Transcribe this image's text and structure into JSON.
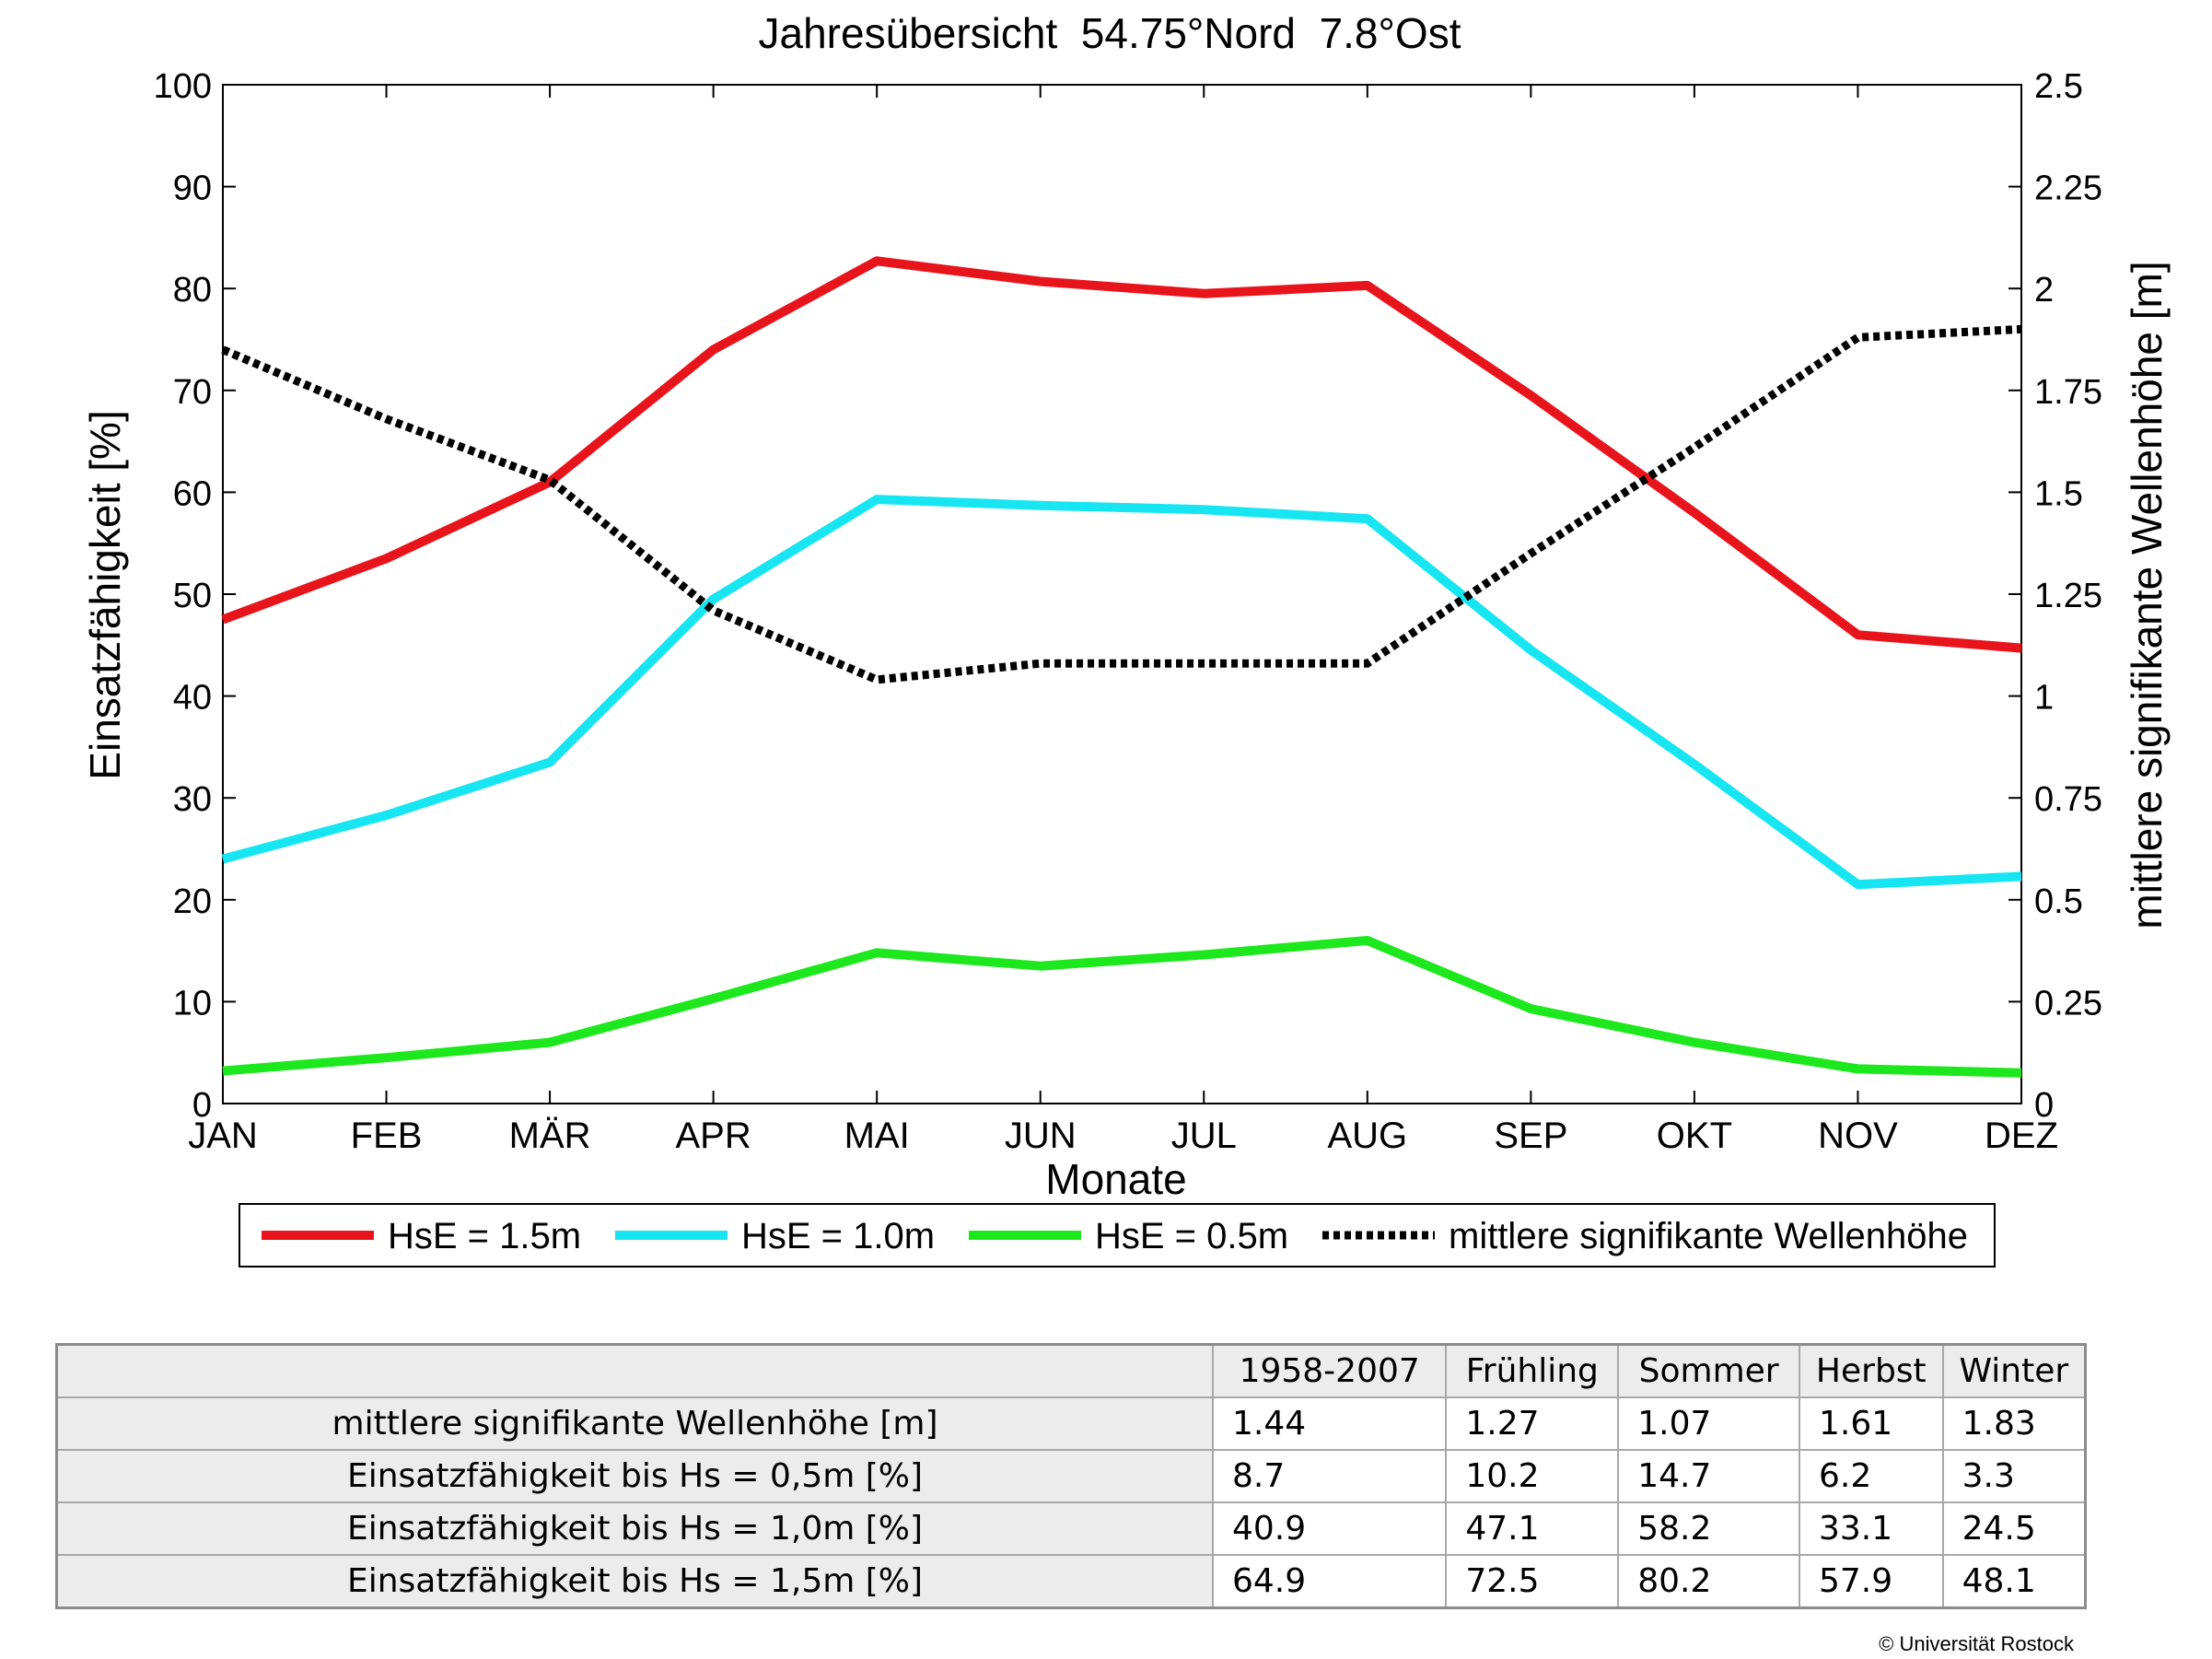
{
  "chart_data": {
    "type": "line",
    "title": "Jahresübersicht  54.75°Nord  7.8°Ost",
    "xlabel": "Monate",
    "ylabel": "Einsatzfähigkeit [%]",
    "ylabel_right": "mittlere signifikante Wellenhöhe [m]",
    "categories": [
      "JAN",
      "FEB",
      "MÄR",
      "APR",
      "MAI",
      "JUN",
      "JUL",
      "AUG",
      "SEP",
      "OKT",
      "NOV",
      "DEZ"
    ],
    "ylim": [
      0,
      100
    ],
    "yticks": [
      "0",
      "10",
      "20",
      "30",
      "40",
      "50",
      "60",
      "70",
      "80",
      "90",
      "100"
    ],
    "ylim_right": [
      0,
      2.5
    ],
    "yticks_right": [
      "0",
      "0.25",
      "0.5",
      "0.75",
      "1",
      "1.25",
      "1.5",
      "1.75",
      "2",
      "2.25",
      "2.5"
    ],
    "legend_position": "bottom",
    "series": [
      {
        "name": "HsE = 1.5m",
        "color": "#e8141c",
        "axis": "left",
        "style": "solid",
        "values": [
          47.5,
          53.5,
          61,
          74,
          82.7,
          80.7,
          79.5,
          80.3,
          69.5,
          58,
          46,
          44.7
        ]
      },
      {
        "name": "HsE = 1.0m",
        "color": "#17e6f2",
        "axis": "left",
        "style": "solid",
        "values": [
          24,
          28.3,
          33.5,
          49.5,
          59.3,
          58.7,
          58.3,
          57.4,
          44.5,
          33.3,
          21.5,
          22.3
        ]
      },
      {
        "name": "HsE = 0.5m",
        "color": "#1de81d",
        "axis": "left",
        "style": "solid",
        "values": [
          3.2,
          4.5,
          6,
          10.3,
          14.8,
          13.5,
          14.6,
          16,
          9.3,
          6,
          3.4,
          3
        ]
      },
      {
        "name": "mittlere signifikante Wellenhöhe",
        "color": "#000000",
        "axis": "right",
        "style": "dotted",
        "values": [
          1.85,
          1.68,
          1.53,
          1.21,
          1.04,
          1.08,
          1.08,
          1.08,
          1.35,
          1.61,
          1.88,
          1.9
        ]
      }
    ]
  },
  "table": {
    "headers": [
      "1958-2007",
      "Frühling",
      "Sommer",
      "Herbst",
      "Winter"
    ],
    "rows": [
      {
        "label": "mittlere signifikante Wellenhöhe [m]",
        "values": [
          "1.44",
          "1.27",
          "1.07",
          "1.61",
          "1.83"
        ]
      },
      {
        "label": "Einsatzfähigkeit bis Hs = 0,5m [%]",
        "values": [
          "8.7",
          "10.2",
          "14.7",
          "6.2",
          "3.3"
        ]
      },
      {
        "label": "Einsatzfähigkeit bis Hs = 1,0m [%]",
        "values": [
          "40.9",
          "47.1",
          "58.2",
          "33.1",
          "24.5"
        ]
      },
      {
        "label": "Einsatzfähigkeit bis Hs = 1,5m [%]",
        "values": [
          "64.9",
          "72.5",
          "80.2",
          "57.9",
          "48.1"
        ]
      }
    ]
  },
  "footer": {
    "copyright": "© Universität Rostock"
  }
}
